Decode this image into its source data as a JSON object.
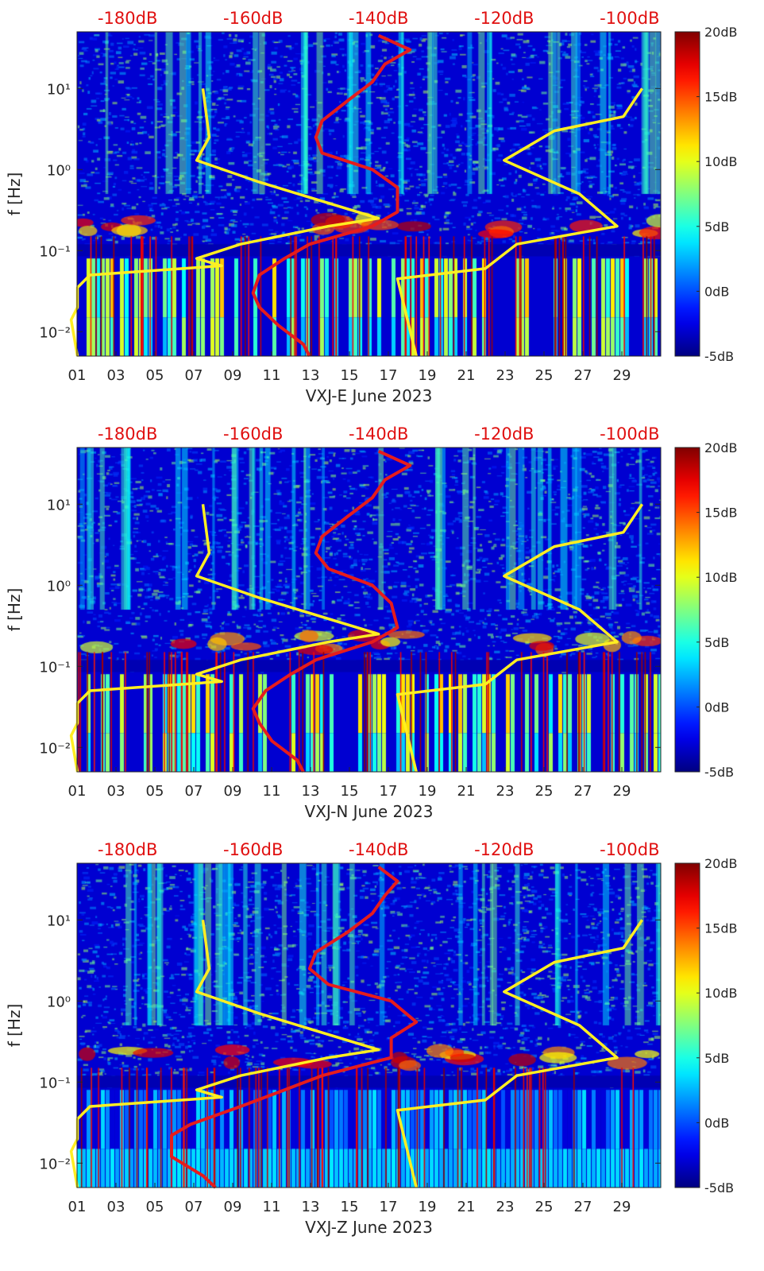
{
  "figure": {
    "colors": {
      "power_curve": "#e61c1c",
      "noise_model_curve": "#ffee22",
      "top_scale_text": "#e01010",
      "axis_text": "#262626",
      "background": "#ffffff"
    },
    "colormap": "jet"
  },
  "chart_data": [
    {
      "type": "heatmap",
      "title": "",
      "xlabel": "VXJ-E June 2023",
      "ylabel": "f [Hz]",
      "x_ticks": [
        "01",
        "03",
        "05",
        "07",
        "09",
        "11",
        "13",
        "15",
        "17",
        "19",
        "21",
        "23",
        "25",
        "27",
        "29"
      ],
      "x_range_days": [
        1,
        31
      ],
      "y_ticks": [
        "10⁻²",
        "10⁻¹",
        "10⁰",
        "10¹"
      ],
      "y_scale": "log",
      "y_range_hz": [
        0.005,
        50
      ],
      "top_scale_ticks": [
        "-180dB",
        "-160dB",
        "-140dB",
        "-120dB",
        "-100dB"
      ],
      "colorbar_ticks": [
        "20dB",
        "15dB",
        "10dB",
        "5dB",
        "0dB",
        "-5dB"
      ],
      "colorbar_range_db": [
        -5,
        20
      ],
      "series": [
        {
          "color": "#e61c1c",
          "f_hz": [
            45,
            30,
            20,
            12,
            7,
            4,
            2.5,
            1.6,
            1.0,
            0.6,
            0.3,
            0.2,
            0.12,
            0.08,
            0.05,
            0.03,
            0.02,
            0.012,
            0.007,
            0.005
          ],
          "db": [
            -140,
            -135,
            -139,
            -141,
            -145,
            -149,
            -150,
            -149,
            -141,
            -137,
            -137,
            -141,
            -151,
            -155,
            -159,
            -160,
            -159,
            -156,
            -152,
            -151
          ]
        },
        {
          "color": "#ffee22",
          "f_hz": [
            10,
            2.5,
            1.3,
            0.7,
            0.25,
            0.2,
            0.12,
            0.08,
            0.065,
            0.05,
            0.035,
            0.02,
            0.014,
            0.005
          ],
          "db": [
            -168,
            -167,
            -169,
            -159,
            -140,
            -148,
            -162,
            -169,
            -165,
            -186,
            -188,
            -188,
            -189,
            -188
          ]
        },
        {
          "color": "#ffee22",
          "f_hz": [
            10,
            4.5,
            3,
            1.3,
            0.5,
            0.2,
            0.12,
            0.06,
            0.045,
            0.005
          ],
          "db": [
            -98,
            -101,
            -112,
            -120,
            -108,
            -102,
            -118,
            -123,
            -137,
            -134
          ]
        }
      ]
    },
    {
      "type": "heatmap",
      "title": "",
      "xlabel": "VXJ-N June 2023",
      "ylabel": "f [Hz]",
      "x_ticks": [
        "01",
        "03",
        "05",
        "07",
        "09",
        "11",
        "13",
        "15",
        "17",
        "19",
        "21",
        "23",
        "25",
        "27",
        "29"
      ],
      "x_range_days": [
        1,
        31
      ],
      "y_ticks": [
        "10⁻²",
        "10⁻¹",
        "10⁰",
        "10¹"
      ],
      "y_scale": "log",
      "y_range_hz": [
        0.005,
        50
      ],
      "top_scale_ticks": [
        "-180dB",
        "-160dB",
        "-140dB",
        "-120dB",
        "-100dB"
      ],
      "colorbar_ticks": [
        "20dB",
        "15dB",
        "10dB",
        "5dB",
        "0dB",
        "-5dB"
      ],
      "colorbar_range_db": [
        -5,
        20
      ],
      "series": [
        {
          "color": "#e61c1c",
          "f_hz": [
            45,
            30,
            20,
            12,
            7,
            4,
            2.5,
            1.6,
            1.0,
            0.6,
            0.3,
            0.2,
            0.12,
            0.08,
            0.05,
            0.03,
            0.02,
            0.012,
            0.007,
            0.005
          ],
          "db": [
            -140,
            -135,
            -139,
            -141,
            -145,
            -149,
            -150,
            -148,
            -141,
            -138,
            -137,
            -141,
            -150,
            -154,
            -158,
            -160,
            -159,
            -157,
            -153,
            -152
          ]
        },
        {
          "color": "#ffee22",
          "f_hz": [
            10,
            2.5,
            1.3,
            0.7,
            0.25,
            0.2,
            0.12,
            0.08,
            0.065,
            0.05,
            0.035,
            0.02,
            0.014,
            0.005
          ],
          "db": [
            -168,
            -167,
            -169,
            -159,
            -140,
            -148,
            -162,
            -169,
            -165,
            -186,
            -188,
            -188,
            -189,
            -188
          ]
        },
        {
          "color": "#ffee22",
          "f_hz": [
            10,
            4.5,
            3,
            1.3,
            0.5,
            0.2,
            0.12,
            0.06,
            0.045,
            0.005
          ],
          "db": [
            -98,
            -101,
            -112,
            -120,
            -108,
            -102,
            -118,
            -123,
            -137,
            -134
          ]
        }
      ]
    },
    {
      "type": "heatmap",
      "title": "",
      "xlabel": "VXJ-Z June 2023",
      "ylabel": "f [Hz]",
      "x_ticks": [
        "01",
        "03",
        "05",
        "07",
        "09",
        "11",
        "13",
        "15",
        "17",
        "19",
        "21",
        "23",
        "25",
        "27",
        "29"
      ],
      "x_range_days": [
        1,
        31
      ],
      "y_ticks": [
        "10⁻²",
        "10⁻¹",
        "10⁰",
        "10¹"
      ],
      "y_scale": "log",
      "y_range_hz": [
        0.005,
        50
      ],
      "top_scale_ticks": [
        "-180dB",
        "-160dB",
        "-140dB",
        "-120dB",
        "-100dB"
      ],
      "colorbar_ticks": [
        "20dB",
        "15dB",
        "10dB",
        "5dB",
        "0dB",
        "-5dB"
      ],
      "colorbar_range_db": [
        -5,
        20
      ],
      "series": [
        {
          "color": "#e61c1c",
          "f_hz": [
            45,
            30,
            20,
            12,
            7,
            4,
            2.5,
            1.6,
            1.0,
            0.55,
            0.35,
            0.2,
            0.12,
            0.08,
            0.05,
            0.03,
            0.022,
            0.012,
            0.007,
            0.005
          ],
          "db": [
            -140,
            -137,
            -139,
            -141,
            -145,
            -150,
            -151,
            -148,
            -138,
            -134,
            -138,
            -138,
            -149,
            -155,
            -162,
            -170,
            -173,
            -173,
            -168,
            -166
          ]
        },
        {
          "color": "#ffee22",
          "f_hz": [
            10,
            2.5,
            1.3,
            0.7,
            0.25,
            0.2,
            0.12,
            0.08,
            0.065,
            0.05,
            0.035,
            0.02,
            0.014,
            0.005
          ],
          "db": [
            -168,
            -167,
            -169,
            -159,
            -140,
            -148,
            -162,
            -169,
            -165,
            -186,
            -188,
            -188,
            -189,
            -188
          ]
        },
        {
          "color": "#ffee22",
          "f_hz": [
            10,
            4.5,
            3,
            1.3,
            0.5,
            0.2,
            0.12,
            0.06,
            0.045,
            0.005
          ],
          "db": [
            -98,
            -101,
            -112,
            -120,
            -108,
            -102,
            -118,
            -123,
            -137,
            -134
          ]
        }
      ]
    }
  ]
}
